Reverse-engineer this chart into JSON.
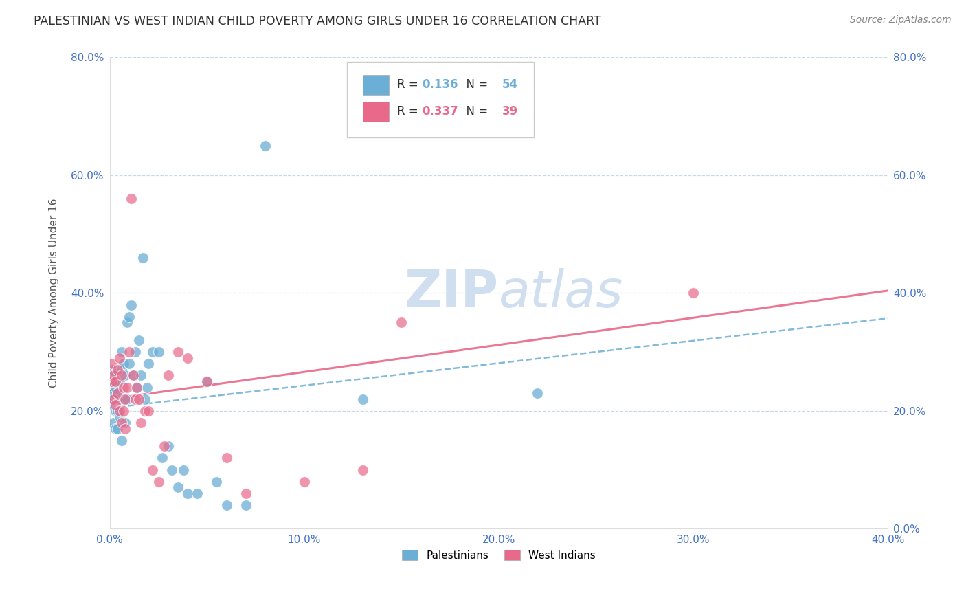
{
  "title": "PALESTINIAN VS WEST INDIAN CHILD POVERTY AMONG GIRLS UNDER 16 CORRELATION CHART",
  "source": "Source: ZipAtlas.com",
  "xlim": [
    0.0,
    0.4
  ],
  "ylim": [
    0.0,
    0.8
  ],
  "ylabel": "Child Poverty Among Girls Under 16",
  "blue_color": "#6baed6",
  "pink_color": "#e8698a",
  "background_color": "#ffffff",
  "grid_color": "#c8d8e8",
  "tick_color": "#4472c4",
  "watermark_color": "#d0dff0",
  "title_fontsize": 12.5,
  "source_fontsize": 10,
  "axis_label_fontsize": 11,
  "tick_fontsize": 11,
  "pal_R": "0.136",
  "pal_N": "54",
  "wi_R": "0.337",
  "wi_N": "39",
  "pal_line_intercept": 0.205,
  "pal_line_slope": 0.38,
  "wi_line_intercept": 0.22,
  "wi_line_slope": 0.46,
  "palestinians_x": [
    0.001,
    0.001,
    0.001,
    0.002,
    0.002,
    0.002,
    0.002,
    0.003,
    0.003,
    0.003,
    0.003,
    0.004,
    0.004,
    0.004,
    0.005,
    0.005,
    0.005,
    0.006,
    0.006,
    0.006,
    0.007,
    0.007,
    0.008,
    0.008,
    0.009,
    0.009,
    0.01,
    0.01,
    0.011,
    0.012,
    0.013,
    0.014,
    0.015,
    0.016,
    0.017,
    0.018,
    0.019,
    0.02,
    0.022,
    0.025,
    0.027,
    0.03,
    0.032,
    0.035,
    0.038,
    0.04,
    0.045,
    0.05,
    0.055,
    0.06,
    0.07,
    0.08,
    0.13,
    0.22
  ],
  "palestinians_y": [
    0.27,
    0.24,
    0.22,
    0.25,
    0.23,
    0.21,
    0.18,
    0.26,
    0.24,
    0.2,
    0.17,
    0.23,
    0.2,
    0.17,
    0.25,
    0.22,
    0.19,
    0.3,
    0.27,
    0.15,
    0.28,
    0.22,
    0.26,
    0.18,
    0.35,
    0.22,
    0.36,
    0.28,
    0.38,
    0.26,
    0.3,
    0.24,
    0.32,
    0.26,
    0.46,
    0.22,
    0.24,
    0.28,
    0.3,
    0.3,
    0.12,
    0.14,
    0.1,
    0.07,
    0.1,
    0.06,
    0.06,
    0.25,
    0.08,
    0.04,
    0.04,
    0.65,
    0.22,
    0.23
  ],
  "west_indians_x": [
    0.001,
    0.001,
    0.002,
    0.002,
    0.003,
    0.003,
    0.004,
    0.004,
    0.005,
    0.005,
    0.006,
    0.006,
    0.007,
    0.007,
    0.008,
    0.008,
    0.009,
    0.01,
    0.011,
    0.012,
    0.013,
    0.014,
    0.015,
    0.016,
    0.018,
    0.02,
    0.022,
    0.025,
    0.028,
    0.03,
    0.035,
    0.04,
    0.05,
    0.06,
    0.07,
    0.1,
    0.13,
    0.15,
    0.3
  ],
  "west_indians_y": [
    0.28,
    0.25,
    0.26,
    0.22,
    0.25,
    0.21,
    0.27,
    0.23,
    0.29,
    0.2,
    0.26,
    0.18,
    0.24,
    0.2,
    0.22,
    0.17,
    0.24,
    0.3,
    0.56,
    0.26,
    0.22,
    0.24,
    0.22,
    0.18,
    0.2,
    0.2,
    0.1,
    0.08,
    0.14,
    0.26,
    0.3,
    0.29,
    0.25,
    0.12,
    0.06,
    0.08,
    0.1,
    0.35,
    0.4
  ]
}
